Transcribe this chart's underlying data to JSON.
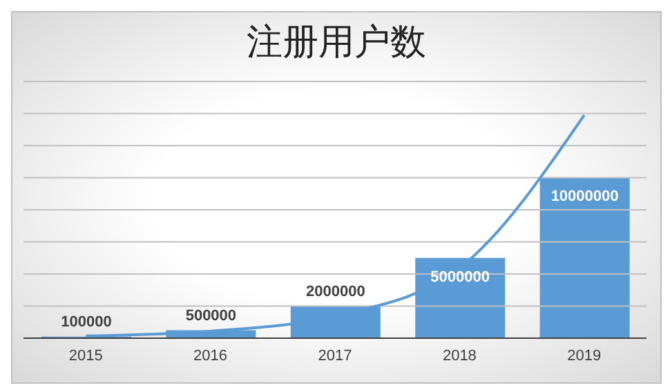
{
  "chart_data": {
    "type": "bar",
    "title": "注册用户数",
    "categories": [
      "2015",
      "2016",
      "2017",
      "2018",
      "2019"
    ],
    "series": [
      {
        "color": "#5b9bd5",
        "values": [
          100000,
          500000,
          2000000,
          5000000,
          10000000
        ],
        "value_labels": [
          "100000",
          "500000",
          "2000000",
          "5000000",
          "10000000"
        ]
      },
      {
        "type": "line",
        "color": "#5b9bd5",
        "values": [
          137000,
          435000,
          1380000,
          4370000,
          13900000
        ]
      }
    ],
    "ylim": [
      0,
      16000000
    ],
    "yticks": [
      {
        "value": 0,
        "label": null
      },
      {
        "value": 2000000,
        "label": null
      },
      {
        "value": 4000000,
        "label": null
      },
      {
        "value": 6000000,
        "label": null
      },
      {
        "value": 8000000,
        "label": null
      },
      {
        "value": 10000000,
        "label": null
      },
      {
        "value": 12000000,
        "label": null
      },
      {
        "value": 14000000,
        "label": null
      },
      {
        "value": 16000000,
        "label": null
      }
    ],
    "grid": "y",
    "tick_labels": "x",
    "marker": "none",
    "line_style": "solid"
  }
}
